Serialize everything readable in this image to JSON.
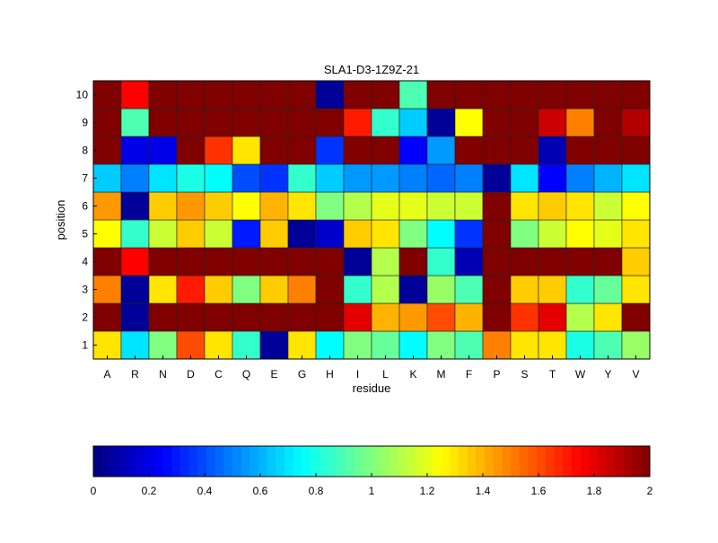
{
  "chart_data": {
    "type": "heatmap",
    "title": "SLA1-D3-1Z9Z-21",
    "xlabel": "residue",
    "ylabel": "position",
    "x_categories": [
      "A",
      "R",
      "N",
      "D",
      "C",
      "Q",
      "E",
      "G",
      "H",
      "I",
      "L",
      "K",
      "M",
      "F",
      "P",
      "S",
      "T",
      "W",
      "Y",
      "V"
    ],
    "y_categories": [
      "1",
      "2",
      "3",
      "4",
      "5",
      "6",
      "7",
      "8",
      "9",
      "10"
    ],
    "colormap": "jet",
    "clim": [
      0,
      2
    ],
    "colorbar": {
      "location": "bottom",
      "ticks": [
        "0",
        "0.2",
        "0.4",
        "0.6",
        "0.8",
        "1",
        "1.2",
        "1.4",
        "1.6",
        "1.8",
        "2"
      ]
    },
    "values_by_position": {
      "1": [
        1.3,
        0.7,
        1.0,
        1.6,
        1.3,
        0.85,
        0.05,
        1.3,
        0.75,
        1.0,
        0.95,
        0.75,
        1.0,
        0.9,
        1.5,
        1.3,
        1.3,
        0.8,
        0.9,
        1.05
      ],
      "2": [
        2,
        0.05,
        2,
        2,
        2,
        2,
        2,
        2,
        2,
        1.8,
        1.4,
        1.45,
        1.6,
        1.4,
        2,
        1.65,
        1.8,
        1.1,
        1.3,
        2
      ],
      "3": [
        1.5,
        0.05,
        1.3,
        1.7,
        1.35,
        1.0,
        1.35,
        1.5,
        2,
        0.85,
        1.1,
        0.05,
        1.05,
        0.9,
        2,
        1.35,
        1.35,
        0.85,
        0.95,
        1.3
      ],
      "4": [
        2,
        1.75,
        2,
        2,
        2,
        2,
        2,
        2,
        2,
        0.05,
        1.1,
        2,
        0.85,
        0.1,
        2,
        2,
        2,
        2,
        2,
        1.35
      ],
      "5": [
        1.25,
        0.85,
        1.15,
        1.35,
        1.15,
        0.3,
        1.35,
        0.05,
        0.15,
        1.35,
        1.3,
        1.0,
        0.75,
        0.35,
        2,
        1.0,
        1.15,
        1.25,
        1.2,
        1.3
      ],
      "6": [
        1.45,
        0.05,
        1.35,
        1.45,
        1.35,
        1.25,
        1.4,
        1.3,
        1.0,
        1.1,
        1.2,
        1.2,
        1.15,
        1.15,
        2,
        1.3,
        1.35,
        1.3,
        1.15,
        1.25
      ],
      "7": [
        0.65,
        0.5,
        0.7,
        0.8,
        0.75,
        0.4,
        0.35,
        0.85,
        0.65,
        0.55,
        0.55,
        0.5,
        0.45,
        0.5,
        0.05,
        0.7,
        0.25,
        0.5,
        0.6,
        0.7
      ],
      "8": [
        2,
        0.2,
        0.2,
        2,
        1.65,
        1.3,
        2,
        2,
        0.35,
        2,
        2,
        0.25,
        0.55,
        2,
        2,
        2,
        0.1,
        2,
        2,
        2
      ],
      "9": [
        2,
        0.9,
        2,
        2,
        2,
        2,
        2,
        2,
        2,
        1.7,
        0.85,
        0.65,
        0.05,
        1.25,
        2,
        2,
        1.85,
        1.5,
        2,
        1.9
      ],
      "10": [
        2,
        1.75,
        2,
        2,
        2,
        2,
        2,
        2,
        0.05,
        2,
        2,
        0.9,
        2,
        2,
        2,
        2,
        2,
        2,
        2,
        2
      ]
    }
  }
}
